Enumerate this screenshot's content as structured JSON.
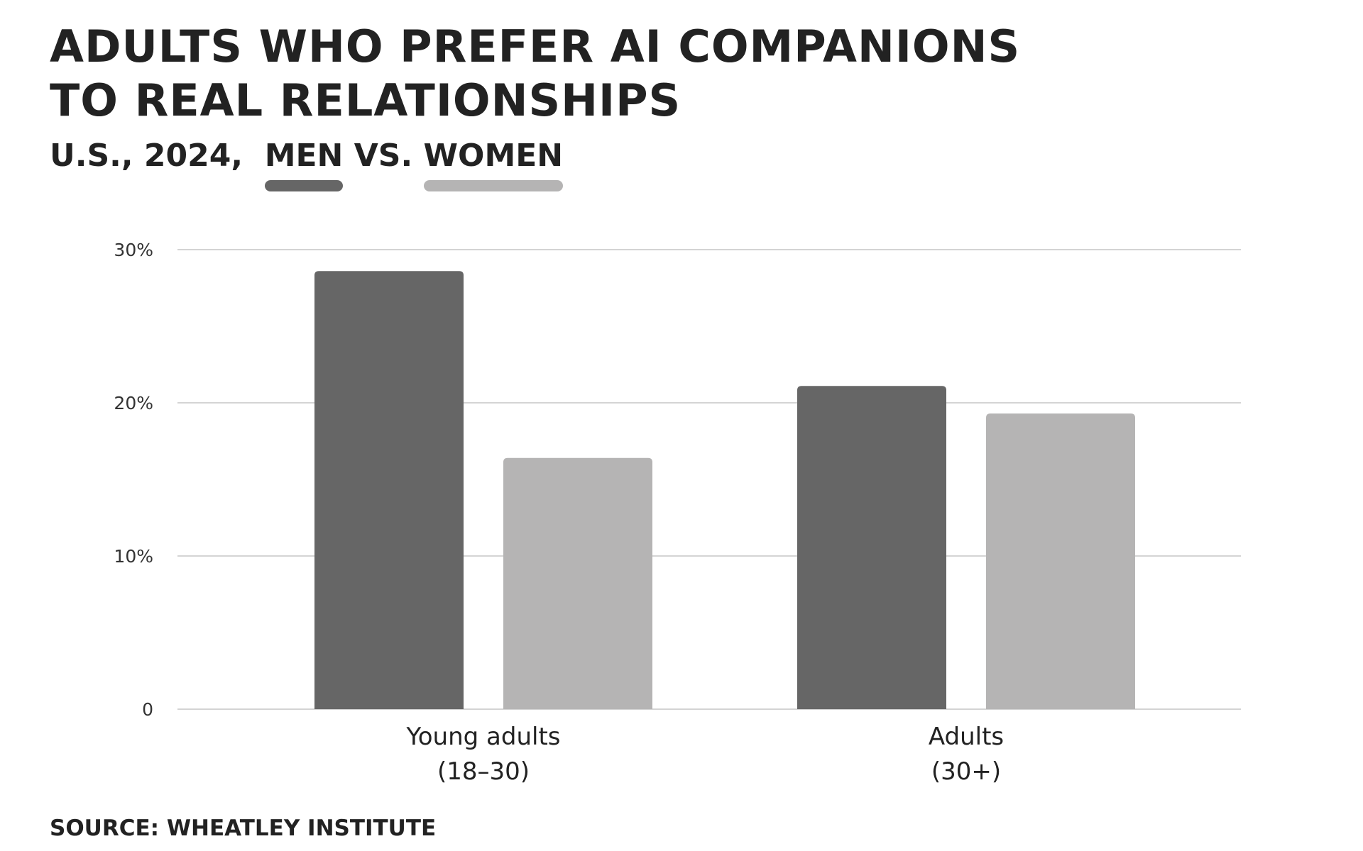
{
  "title": {
    "line1": "ADULTS WHO PREFER AI COMPANIONS",
    "line2": "TO REAL RELATIONSHIPS"
  },
  "subtitle": {
    "prefix": "U.S., 2024,",
    "men": "MEN",
    "vs": "VS.",
    "women": "WOMEN"
  },
  "source": "SOURCE: WHEATLEY INSTITUTE",
  "colors": {
    "men": "#666666",
    "women": "#b5b4b4",
    "grid": "#d4d4d4"
  },
  "chart_data": {
    "type": "bar",
    "title": "ADULTS WHO PREFER AI COMPANIONS TO REAL RELATIONSHIPS",
    "subtitle": "U.S., 2024, MEN VS. WOMEN",
    "categories": [
      [
        "Young adults",
        "(18–30)"
      ],
      [
        "Adults",
        "(30+)"
      ]
    ],
    "series": [
      {
        "name": "MEN",
        "color": "#666666",
        "values": [
          28.6,
          21.1
        ]
      },
      {
        "name": "WOMEN",
        "color": "#b5b4b4",
        "values": [
          16.4,
          19.3
        ]
      }
    ],
    "y_ticks": [
      {
        "value": 0,
        "label": "0"
      },
      {
        "value": 10,
        "label": "10%"
      },
      {
        "value": 20,
        "label": "20%"
      },
      {
        "value": 30,
        "label": "30%"
      }
    ],
    "ylim": [
      0,
      30
    ],
    "grid": true,
    "legend": "subtitle underline swatches"
  }
}
